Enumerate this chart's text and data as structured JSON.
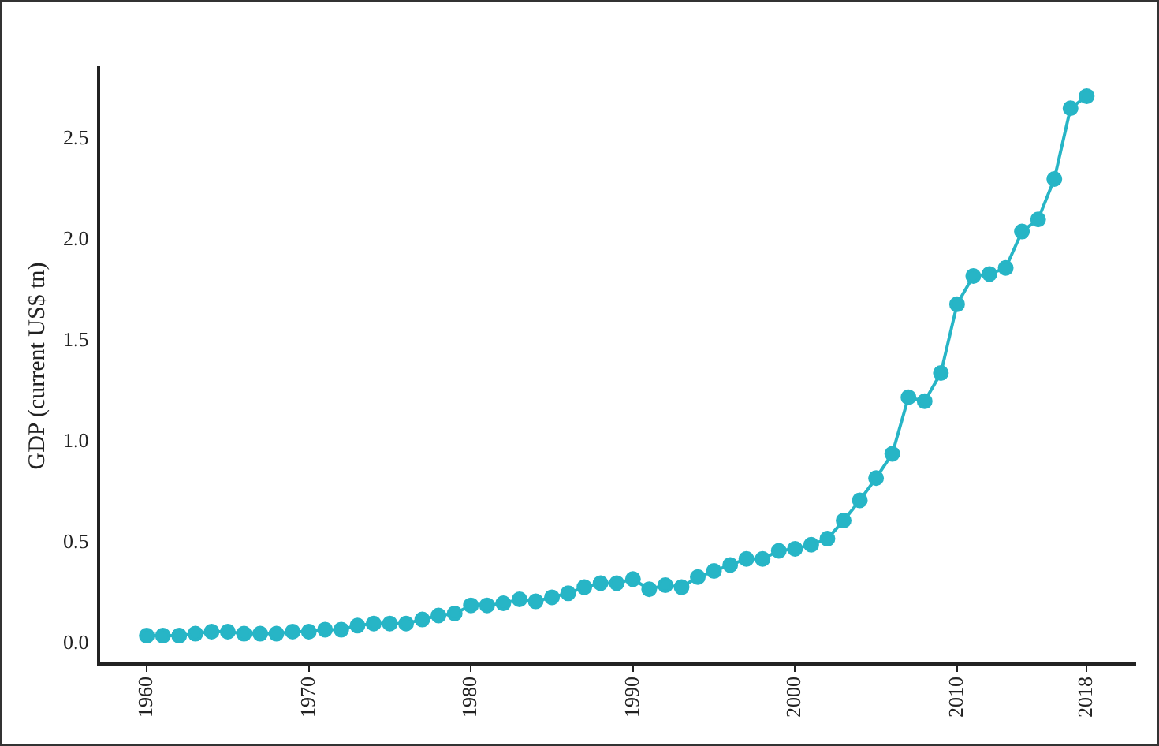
{
  "chart_data": {
    "type": "line",
    "ylabel": "GDP (current US$ tn)",
    "x": [
      1960,
      1961,
      1962,
      1963,
      1964,
      1965,
      1966,
      1967,
      1968,
      1969,
      1970,
      1971,
      1972,
      1973,
      1974,
      1975,
      1976,
      1977,
      1978,
      1979,
      1980,
      1981,
      1982,
      1983,
      1984,
      1985,
      1986,
      1987,
      1988,
      1989,
      1990,
      1991,
      1992,
      1993,
      1994,
      1995,
      1996,
      1997,
      1998,
      1999,
      2000,
      2001,
      2002,
      2003,
      2004,
      2005,
      2006,
      2007,
      2008,
      2009,
      2010,
      2011,
      2012,
      2013,
      2014,
      2015,
      2016,
      2017,
      2018
    ],
    "series": [
      {
        "color": "#27b5c6",
        "values": [
          0.04,
          0.04,
          0.04,
          0.05,
          0.06,
          0.06,
          0.05,
          0.05,
          0.05,
          0.06,
          0.06,
          0.07,
          0.07,
          0.09,
          0.1,
          0.1,
          0.1,
          0.12,
          0.14,
          0.15,
          0.19,
          0.19,
          0.2,
          0.22,
          0.21,
          0.23,
          0.25,
          0.28,
          0.3,
          0.3,
          0.32,
          0.27,
          0.29,
          0.28,
          0.33,
          0.36,
          0.39,
          0.42,
          0.42,
          0.46,
          0.47,
          0.49,
          0.52,
          0.61,
          0.71,
          0.82,
          0.94,
          1.22,
          1.2,
          1.34,
          1.68,
          1.82,
          1.83,
          1.86,
          2.04,
          2.1,
          2.3,
          2.65,
          2.71
        ]
      }
    ],
    "xlim": [
      1957,
      2021
    ],
    "xticks": [
      1960,
      1970,
      1980,
      1990,
      2000,
      2010,
      2018
    ],
    "ylim": [
      -0.1,
      2.85
    ],
    "yticks": [
      {
        "value": 0,
        "label": "0.0"
      },
      {
        "value": 0.5,
        "label": "0.5"
      },
      {
        "value": 1,
        "label": "1.0"
      },
      {
        "value": 1.5,
        "label": "1.5"
      },
      {
        "value": 2,
        "label": "2.0"
      },
      {
        "value": 2.5,
        "label": "2.5"
      }
    ],
    "grid": false,
    "legend": false,
    "marker": "circle",
    "line_style": "solid"
  }
}
